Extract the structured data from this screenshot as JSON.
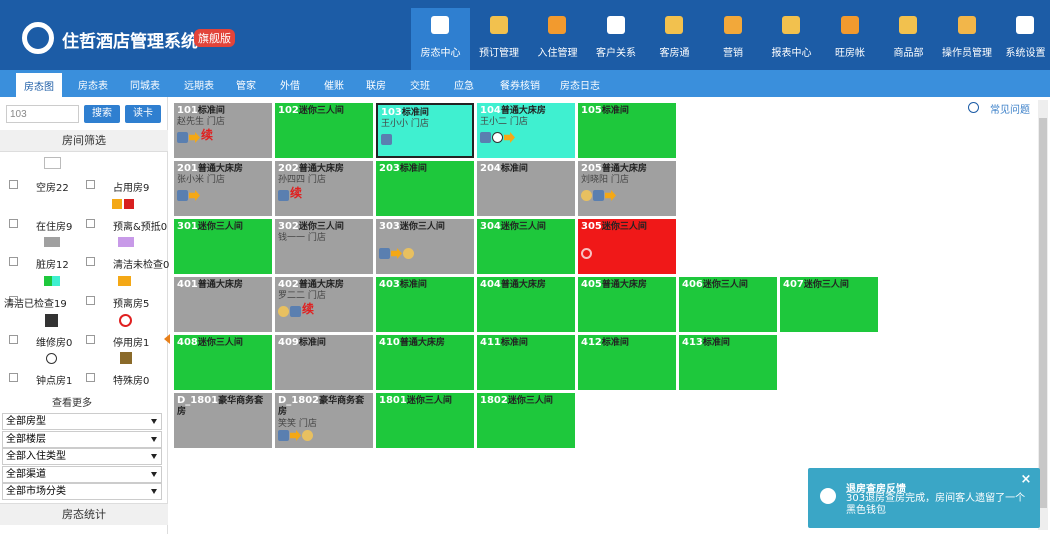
{
  "header": {
    "logo": "住哲酒店管理系统",
    "edition": "旗舰版",
    "nav": [
      "房态中心",
      "预订管理",
      "入住管理",
      "客户关系",
      "客房通",
      "营销",
      "报表中心",
      "旺房帐",
      "商品部",
      "操作员管理",
      "系统设置"
    ]
  },
  "tabs": [
    "房态图",
    "房态表",
    "同城表",
    "远期表",
    "管家",
    "外借",
    "催账",
    "联房",
    "交班",
    "应急",
    "餐券核销",
    "房态日志"
  ],
  "sidebar": {
    "search_value": "103",
    "buttons": [
      "搜索",
      "读卡"
    ],
    "filter_title": "房间筛选",
    "filters": [
      "空房22",
      "占用房9",
      "在住房9",
      "预离&预抵0",
      "脏房12",
      "清洁未检查0",
      "清洁已检查19",
      "预离房5",
      "维修房0",
      "停用房1",
      "钟点房1",
      "特殊房0"
    ],
    "more": "查看更多",
    "selects": [
      "全部房型",
      "全部楼层",
      "全部入住类型",
      "全部渠道",
      "全部市场分类"
    ],
    "stats_title": "房态统计"
  },
  "help": "常见问题",
  "rooms": [
    [
      {
        "number": "101",
        "type": "标准间",
        "guest": "赵先生 门店",
        "badge": "续"
      },
      {
        "number": "102",
        "type": "迷你三人间"
      },
      {
        "number": "103",
        "type": "标准间",
        "guest": "王小小 门店"
      },
      {
        "number": "104",
        "type": "普通大床房",
        "guest": "王小二 门店"
      },
      {
        "number": "105",
        "type": "标准间"
      }
    ],
    [
      {
        "number": "201",
        "type": "普通大床房",
        "guest": "张小米 门店"
      },
      {
        "number": "202",
        "type": "普通大床房",
        "guest": "孙四四 门店",
        "badge": "续"
      },
      {
        "number": "203",
        "type": "标准间"
      },
      {
        "number": "204",
        "type": "标准间"
      },
      {
        "number": "205",
        "type": "普通大床房",
        "guest": "刘晓阳 门店"
      }
    ],
    [
      {
        "number": "301",
        "type": "迷你三人间"
      },
      {
        "number": "302",
        "type": "迷你三人间",
        "guest": "钱一一 门店"
      },
      {
        "number": "303",
        "type": "迷你三人间"
      },
      {
        "number": "304",
        "type": "迷你三人间"
      },
      {
        "number": "305",
        "type": "迷你三人间"
      }
    ],
    [
      {
        "number": "401",
        "type": "普通大床房"
      },
      {
        "number": "402",
        "type": "普通大床房",
        "guest": "罗二二 门店",
        "badge": "续"
      },
      {
        "number": "403",
        "type": "标准间"
      },
      {
        "number": "404",
        "type": "普通大床房"
      },
      {
        "number": "405",
        "type": "普通大床房"
      },
      {
        "number": "406",
        "type": "迷你三人间"
      },
      {
        "number": "407",
        "type": "迷你三人间"
      }
    ],
    [
      {
        "number": "408",
        "type": "迷你三人间"
      },
      {
        "number": "409",
        "type": "标准间"
      },
      {
        "number": "410",
        "type": "普通大床房"
      },
      {
        "number": "411",
        "type": "标准间"
      },
      {
        "number": "412",
        "type": "标准间"
      },
      {
        "number": "413",
        "type": "标准间"
      }
    ],
    [
      {
        "number": "D_1801",
        "type": "豪华商务套房"
      },
      {
        "number": "D_1802",
        "type": "豪华商务套房",
        "guest": "笑笑 门店"
      },
      {
        "number": "1801",
        "type": "迷你三人间"
      },
      {
        "number": "1802",
        "type": "迷你三人间"
      }
    ]
  ],
  "notice": {
    "title": "退房查房反馈",
    "body": "303退房查房完成，房间客人遗留了一个黑色钱包"
  }
}
